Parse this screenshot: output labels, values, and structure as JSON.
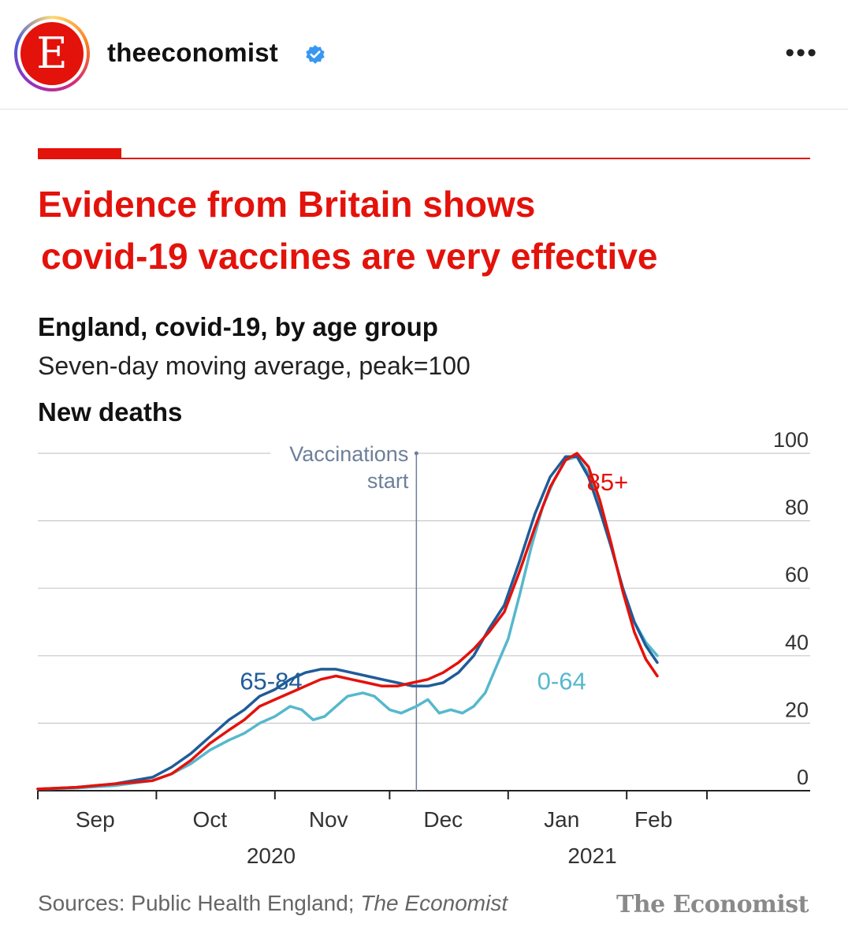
{
  "post": {
    "username": "theeconomist",
    "avatar_letter": "E",
    "more": "•••",
    "icons": {
      "verified": "verified-badge-icon",
      "more": "more-options-icon"
    },
    "colors": {
      "brand_red": "#e3120b",
      "verified_blue": "#3897f0"
    }
  },
  "chart_data": {
    "type": "line",
    "title": [
      "Evidence from Britain shows",
      "covid-19 vaccines are very effective"
    ],
    "subtitle": "England, covid-19, by age group",
    "subtitle2": "Seven-day moving average, peak=100",
    "panel_title": "New deaths",
    "ylim": [
      0,
      100
    ],
    "yticks": [
      "0",
      "20",
      "40",
      "60",
      "80",
      "100"
    ],
    "x_range": [
      "2020-08-31",
      "2021-03-08"
    ],
    "x_month_labels": [
      {
        "label": "Sep",
        "date": "2020-09-15"
      },
      {
        "label": "Oct",
        "date": "2020-10-15"
      },
      {
        "label": "Nov",
        "date": "2020-11-15"
      },
      {
        "label": "Dec",
        "date": "2020-12-15"
      },
      {
        "label": "Jan",
        "date": "2021-01-15"
      },
      {
        "label": "Feb",
        "date": "2021-02-08"
      }
    ],
    "x_tick_dates": [
      "2020-08-31",
      "2020-10-01",
      "2020-11-01",
      "2020-12-01",
      "2021-01-01",
      "2021-02-01",
      "2021-02-22"
    ],
    "year_labels": [
      {
        "label": "2020",
        "date": "2020-10-31"
      },
      {
        "label": "2021",
        "date": "2021-01-23"
      }
    ],
    "annotation": {
      "lines": [
        "Vaccinations",
        "start"
      ],
      "date": "2020-12-08",
      "y": 100
    },
    "grid": true,
    "series": [
      {
        "name": "0-64",
        "color": "#56b8cc",
        "label_date": "2021-01-15",
        "label_y": 30,
        "points": [
          [
            "2020-08-31",
            0.5
          ],
          [
            "2020-09-10",
            0.8
          ],
          [
            "2020-09-20",
            1.5
          ],
          [
            "2020-09-30",
            3
          ],
          [
            "2020-10-05",
            5
          ],
          [
            "2020-10-10",
            8
          ],
          [
            "2020-10-15",
            12
          ],
          [
            "2020-10-20",
            15
          ],
          [
            "2020-10-24",
            17
          ],
          [
            "2020-10-28",
            20
          ],
          [
            "2020-11-01",
            22
          ],
          [
            "2020-11-05",
            25
          ],
          [
            "2020-11-08",
            24
          ],
          [
            "2020-11-11",
            21
          ],
          [
            "2020-11-14",
            22
          ],
          [
            "2020-11-17",
            25
          ],
          [
            "2020-11-20",
            28
          ],
          [
            "2020-11-24",
            29
          ],
          [
            "2020-11-27",
            28
          ],
          [
            "2020-12-01",
            24
          ],
          [
            "2020-12-04",
            23
          ],
          [
            "2020-12-08",
            25
          ],
          [
            "2020-12-11",
            27
          ],
          [
            "2020-12-14",
            23
          ],
          [
            "2020-12-17",
            24
          ],
          [
            "2020-12-20",
            23
          ],
          [
            "2020-12-23",
            25
          ],
          [
            "2020-12-26",
            29
          ],
          [
            "2020-12-29",
            37
          ],
          [
            "2021-01-01",
            45
          ],
          [
            "2021-01-04",
            58
          ],
          [
            "2021-01-07",
            72
          ],
          [
            "2021-01-10",
            84
          ],
          [
            "2021-01-13",
            92
          ],
          [
            "2021-01-16",
            98
          ],
          [
            "2021-01-19",
            99
          ],
          [
            "2021-01-22",
            94
          ],
          [
            "2021-01-25",
            85
          ],
          [
            "2021-01-28",
            72
          ],
          [
            "2021-01-31",
            60
          ],
          [
            "2021-02-03",
            50
          ],
          [
            "2021-02-06",
            44
          ],
          [
            "2021-02-09",
            40
          ]
        ]
      },
      {
        "name": "65-84",
        "color": "#1f5c99",
        "label_date": "2020-10-31",
        "label_y": 30,
        "points": [
          [
            "2020-08-31",
            0.5
          ],
          [
            "2020-09-10",
            1
          ],
          [
            "2020-09-20",
            2
          ],
          [
            "2020-09-30",
            4
          ],
          [
            "2020-10-05",
            7
          ],
          [
            "2020-10-10",
            11
          ],
          [
            "2020-10-15",
            16
          ],
          [
            "2020-10-20",
            21
          ],
          [
            "2020-10-24",
            24
          ],
          [
            "2020-10-28",
            28
          ],
          [
            "2020-11-01",
            30
          ],
          [
            "2020-11-05",
            33
          ],
          [
            "2020-11-09",
            35
          ],
          [
            "2020-11-13",
            36
          ],
          [
            "2020-11-17",
            36
          ],
          [
            "2020-11-21",
            35
          ],
          [
            "2020-11-25",
            34
          ],
          [
            "2020-11-29",
            33
          ],
          [
            "2020-12-03",
            32
          ],
          [
            "2020-12-07",
            31
          ],
          [
            "2020-12-11",
            31
          ],
          [
            "2020-12-15",
            32
          ],
          [
            "2020-12-19",
            35
          ],
          [
            "2020-12-23",
            40
          ],
          [
            "2020-12-27",
            48
          ],
          [
            "2020-12-31",
            55
          ],
          [
            "2021-01-04",
            68
          ],
          [
            "2021-01-08",
            82
          ],
          [
            "2021-01-12",
            93
          ],
          [
            "2021-01-16",
            99
          ],
          [
            "2021-01-19",
            99
          ],
          [
            "2021-01-22",
            93
          ],
          [
            "2021-01-25",
            83
          ],
          [
            "2021-01-28",
            72
          ],
          [
            "2021-01-31",
            60
          ],
          [
            "2021-02-03",
            50
          ],
          [
            "2021-02-06",
            43
          ],
          [
            "2021-02-09",
            38
          ]
        ]
      },
      {
        "name": "85+",
        "color": "#e3120b",
        "label_date": "2021-01-27",
        "label_y": 89,
        "points": [
          [
            "2020-08-31",
            0.5
          ],
          [
            "2020-09-10",
            1
          ],
          [
            "2020-09-20",
            2
          ],
          [
            "2020-09-30",
            3
          ],
          [
            "2020-10-05",
            5
          ],
          [
            "2020-10-10",
            9
          ],
          [
            "2020-10-15",
            14
          ],
          [
            "2020-10-20",
            18
          ],
          [
            "2020-10-24",
            21
          ],
          [
            "2020-10-28",
            25
          ],
          [
            "2020-11-01",
            27
          ],
          [
            "2020-11-05",
            29
          ],
          [
            "2020-11-09",
            31
          ],
          [
            "2020-11-13",
            33
          ],
          [
            "2020-11-17",
            34
          ],
          [
            "2020-11-21",
            33
          ],
          [
            "2020-11-25",
            32
          ],
          [
            "2020-11-29",
            31
          ],
          [
            "2020-12-03",
            31
          ],
          [
            "2020-12-07",
            32
          ],
          [
            "2020-12-11",
            33
          ],
          [
            "2020-12-15",
            35
          ],
          [
            "2020-12-19",
            38
          ],
          [
            "2020-12-23",
            42
          ],
          [
            "2020-12-27",
            47
          ],
          [
            "2020-12-31",
            53
          ],
          [
            "2021-01-04",
            65
          ],
          [
            "2021-01-08",
            78
          ],
          [
            "2021-01-12",
            90
          ],
          [
            "2021-01-16",
            98
          ],
          [
            "2021-01-19",
            100
          ],
          [
            "2021-01-22",
            96
          ],
          [
            "2021-01-25",
            86
          ],
          [
            "2021-01-28",
            73
          ],
          [
            "2021-01-31",
            59
          ],
          [
            "2021-02-03",
            47
          ],
          [
            "2021-02-06",
            39
          ],
          [
            "2021-02-09",
            34
          ]
        ]
      }
    ],
    "sources_prefix": "Sources: Public Health England; ",
    "sources_italic": "The Economist",
    "logo": "The Economist"
  }
}
